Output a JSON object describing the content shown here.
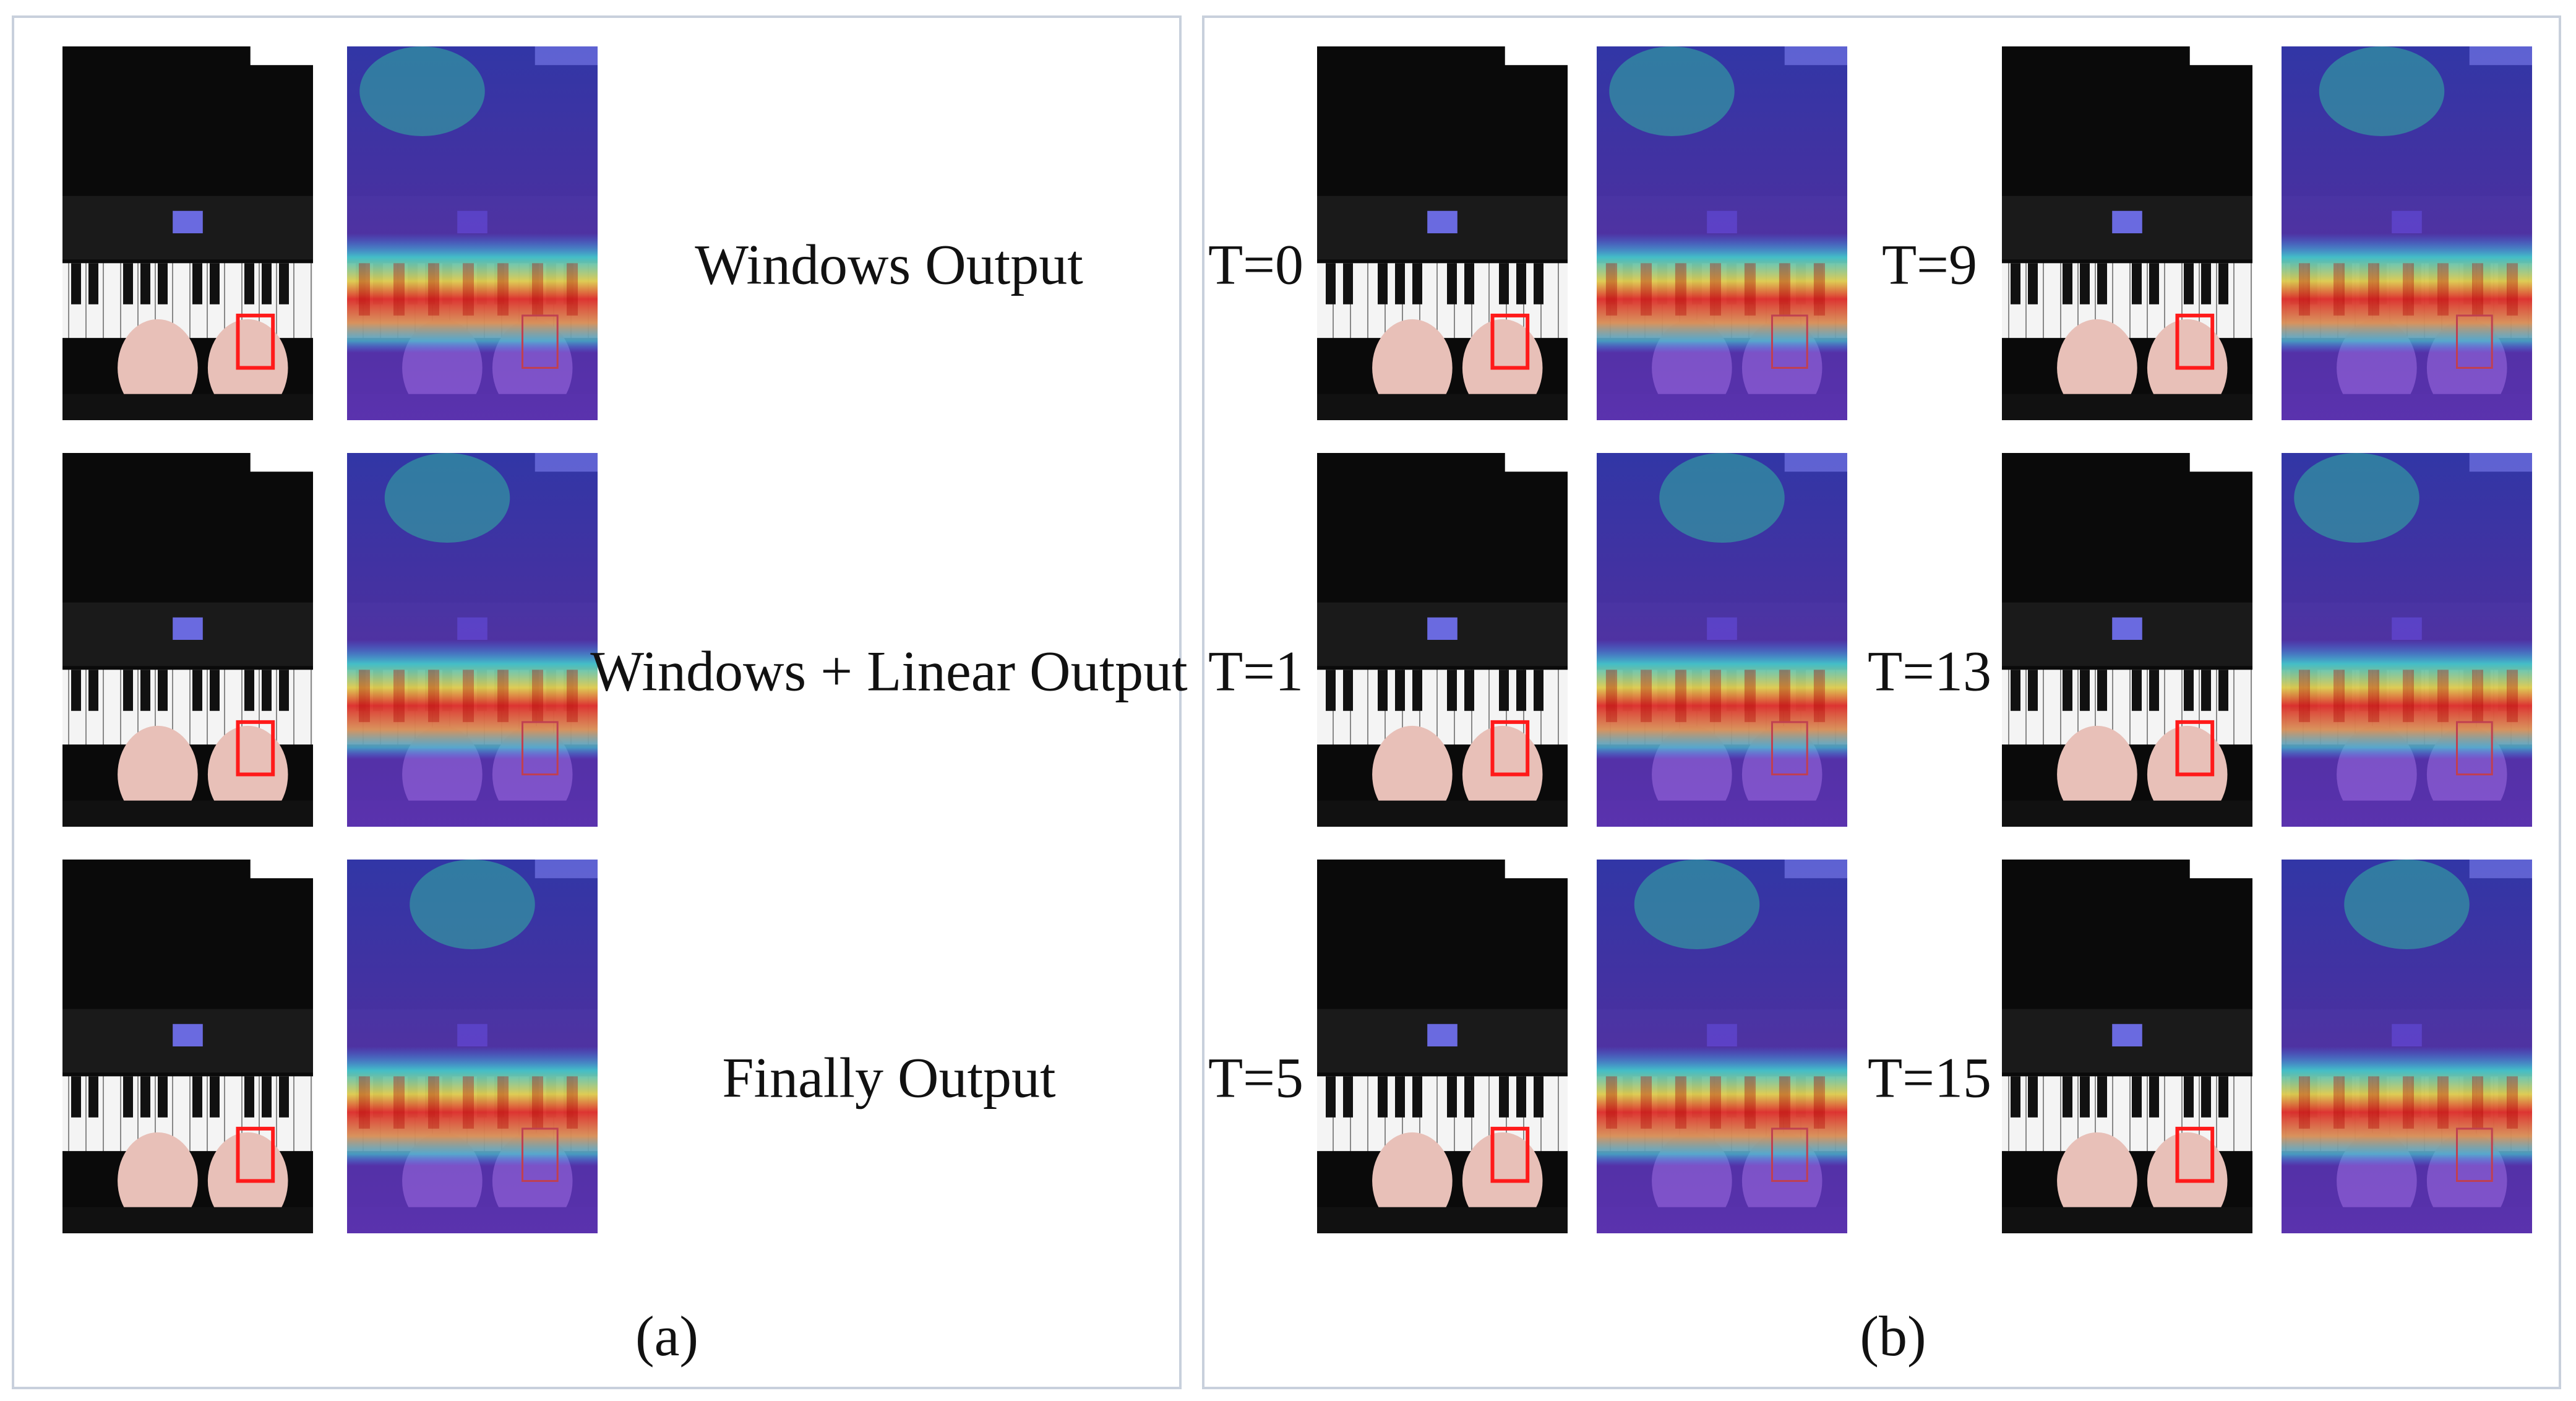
{
  "panel_a": {
    "labels": [
      "Windows Output",
      "Windows + Linear Output",
      "Finally Output"
    ],
    "caption": "(a)"
  },
  "panel_b": {
    "labels": [
      "T=0",
      "T=1",
      "T=5",
      "T=9",
      "T=13",
      "T=15"
    ],
    "caption": "(b)"
  }
}
